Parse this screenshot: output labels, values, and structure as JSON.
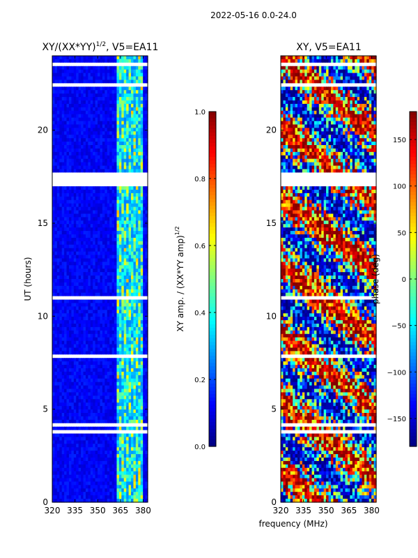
{
  "figure": {
    "suptitle": "2022-05-16 0.0-24.0",
    "shared_xlabel": "frequency (MHz)"
  },
  "chart_data": [
    {
      "type": "heatmap",
      "title_text": "XY/(XX*YY)",
      "title_exponent": "1/2",
      "title_suffix": ", V5=EA11",
      "ylabel": "UT (hours)",
      "xlim": [
        320,
        383
      ],
      "ylim": [
        0,
        24
      ],
      "xticks": [
        320,
        335,
        350,
        365,
        380
      ],
      "yticks": [
        0,
        5,
        10,
        15,
        20
      ],
      "colorbar": {
        "label_text": "XY amp. / (XX*YY amp)",
        "label_exponent": "1/2",
        "range": [
          0.0,
          1.0
        ],
        "ticks": [
          "0.0",
          "0.2",
          "0.4",
          "0.6",
          "0.8",
          "1.0"
        ],
        "tick_values": [
          0.0,
          0.2,
          0.4,
          0.6,
          0.8,
          1.0
        ]
      },
      "description_values": {
        "background_level": 0.1,
        "bright_band_freq_range_mhz": [
          362,
          380
        ],
        "bright_band_level": 0.45
      },
      "missing_hours": [
        [
          17.0,
          17.8
        ],
        [
          10.9,
          11.1
        ],
        [
          7.8,
          8.0
        ],
        [
          4.1,
          4.3
        ],
        [
          3.7,
          3.9
        ],
        [
          22.3,
          22.5
        ],
        [
          23.5,
          23.7
        ]
      ]
    },
    {
      "type": "heatmap",
      "title": "XY, V5=EA11",
      "xlim": [
        320,
        383
      ],
      "ylim": [
        0,
        24
      ],
      "xticks": [
        320,
        335,
        350,
        365,
        380
      ],
      "yticks": [
        0,
        5,
        10,
        15,
        20
      ],
      "colorbar": {
        "label": "phase (deg)",
        "range": [
          -180,
          180
        ],
        "ticks": [
          "−150",
          "−100",
          "−50",
          "0",
          "50",
          "100",
          "150"
        ],
        "tick_values": [
          -150,
          -100,
          -50,
          0,
          50,
          100,
          150
        ]
      },
      "missing_hours": [
        [
          17.0,
          17.8
        ],
        [
          10.9,
          11.1
        ],
        [
          7.8,
          8.0
        ],
        [
          4.1,
          4.3
        ],
        [
          3.7,
          3.9
        ],
        [
          22.3,
          22.5
        ],
        [
          23.5,
          23.7
        ]
      ]
    }
  ]
}
